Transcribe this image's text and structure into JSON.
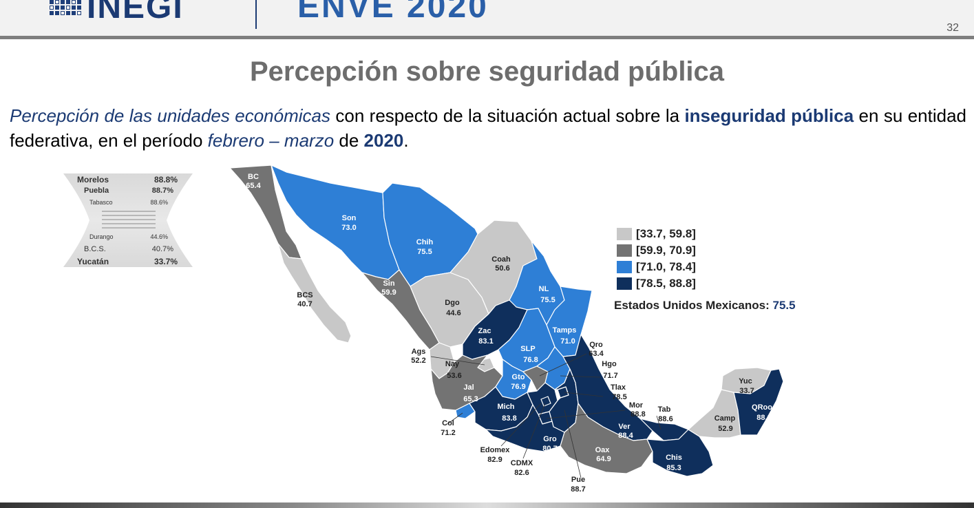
{
  "header": {
    "logo_text": "INEGI",
    "survey_title": "ENVE 2020",
    "page_number": "32"
  },
  "slide": {
    "title": "Percepción sobre seguridad pública",
    "subtitle": {
      "p1": "Percepción de las unidades económicas",
      "p2": " con respecto de la situación actual sobre la ",
      "p3": "inseguridad pública",
      "p4": " en su entidad federativa, en el período ",
      "p5": "febrero – marzo",
      "p6": " de ",
      "p7": "2020",
      "p8": "."
    }
  },
  "ranking": {
    "top": [
      {
        "name": "Morelos",
        "value": "88.8%"
      },
      {
        "name": "Puebla",
        "value": "88.7%"
      },
      {
        "name": "Tabasco",
        "value": "88.6%"
      }
    ],
    "bottom": [
      {
        "name": "Durango",
        "value": "44.6%"
      },
      {
        "name": "B.C.S.",
        "value": "40.7%"
      },
      {
        "name": "Yucatán",
        "value": "33.7%"
      }
    ]
  },
  "legend": {
    "ranges": [
      {
        "label": "[33.7, 59.8]",
        "color": "#c8c8c8"
      },
      {
        "label": "[59.9, 70.9]",
        "color": "#737373"
      },
      {
        "label": "[71.0, 78.4]",
        "color": "#2e7fd6"
      },
      {
        "label": "[78.5, 88.8]",
        "color": "#0f2f5c"
      }
    ],
    "national_label": "Estados Unidos Mexicanos: ",
    "national_value": "75.5"
  },
  "states": {
    "bc": {
      "abbr": "BC",
      "value": "65.4"
    },
    "son": {
      "abbr": "Son",
      "value": "73.0"
    },
    "chih": {
      "abbr": "Chih",
      "value": "75.5"
    },
    "coah": {
      "abbr": "Coah",
      "value": "50.6"
    },
    "nl": {
      "abbr": "NL",
      "value": "75.5"
    },
    "bcs": {
      "abbr": "BCS",
      "value": "40.7"
    },
    "sin": {
      "abbr": "Sin",
      "value": "59.9"
    },
    "dgo": {
      "abbr": "Dgo",
      "value": "44.6"
    },
    "zac": {
      "abbr": "Zac",
      "value": "83.1"
    },
    "tamps": {
      "abbr": "Tamps",
      "value": "71.0"
    },
    "qro": {
      "abbr": "Qro",
      "value": "63.4"
    },
    "ags": {
      "abbr": "Ags",
      "value": "52.2"
    },
    "nay": {
      "abbr": "Nay",
      "value": "53.6"
    },
    "slp": {
      "abbr": "SLP",
      "value": "76.8"
    },
    "hgo": {
      "abbr": "Hgo",
      "value": "71.7"
    },
    "gto": {
      "abbr": "Gto",
      "value": "76.9"
    },
    "tlax": {
      "abbr": "Tlax",
      "value": "78.5"
    },
    "jal": {
      "abbr": "Jal",
      "value": "65.3"
    },
    "yuc": {
      "abbr": "Yuc",
      "value": "33.7"
    },
    "mor": {
      "abbr": "Mor",
      "value": "88.8"
    },
    "tab": {
      "abbr": "Tab",
      "value": "88.6"
    },
    "mich": {
      "abbr": "Mich",
      "value": "83.8"
    },
    "qroo": {
      "abbr": "QRoo",
      "value": "88.0"
    },
    "camp": {
      "abbr": "Camp",
      "value": "52.9"
    },
    "col": {
      "abbr": "Col",
      "value": "71.2"
    },
    "ver": {
      "abbr": "Ver",
      "value": "88.4"
    },
    "gro": {
      "abbr": "Gro",
      "value": "80.7"
    },
    "oax": {
      "abbr": "Oax",
      "value": "64.9"
    },
    "chis": {
      "abbr": "Chis",
      "value": "85.3"
    },
    "edomex": {
      "abbr": "Edomex",
      "value": "82.9"
    },
    "cdmx": {
      "abbr": "CDMX",
      "value": "82.6"
    },
    "pue": {
      "abbr": "Pue",
      "value": "88.7"
    }
  }
}
